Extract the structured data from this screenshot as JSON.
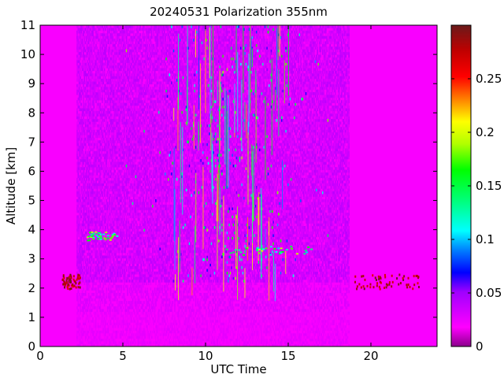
{
  "chart_data": {
    "type": "heatmap",
    "title": "20240531 Polarization 355nm",
    "xlabel": "UTC Time",
    "ylabel": "Altitude [km]",
    "xlim": [
      0,
      24
    ],
    "ylim": [
      0,
      11
    ],
    "xticks": [
      0,
      5,
      10,
      15,
      20
    ],
    "yticks": [
      0,
      1,
      2,
      3,
      4,
      5,
      6,
      7,
      8,
      9,
      10,
      11
    ],
    "colorbar": {
      "colormap": "rainbow-purple",
      "range": [
        0,
        0.3
      ],
      "ticks": [
        0,
        0.05,
        0.1,
        0.15,
        0.2,
        0.25
      ],
      "tick_labels": [
        "0",
        "0.05",
        "0.1",
        "0.15",
        "0.2",
        "0.25"
      ]
    },
    "data_coverage": {
      "no_data_before_utc": 2.2,
      "no_data_after_utc": 22.9,
      "high_signal_start_utc": 2.2,
      "high_signal_end_utc": 18.7,
      "boundary_layer_top_km": 2.2,
      "cloud_layers": [
        {
          "start_utc": 2.8,
          "end_utc": 4.6,
          "altitude_km": 3.8
        },
        {
          "start_utc": 11.0,
          "end_utc": 16.5,
          "altitude_km": 3.3
        }
      ],
      "background_value": 0.02
    }
  }
}
